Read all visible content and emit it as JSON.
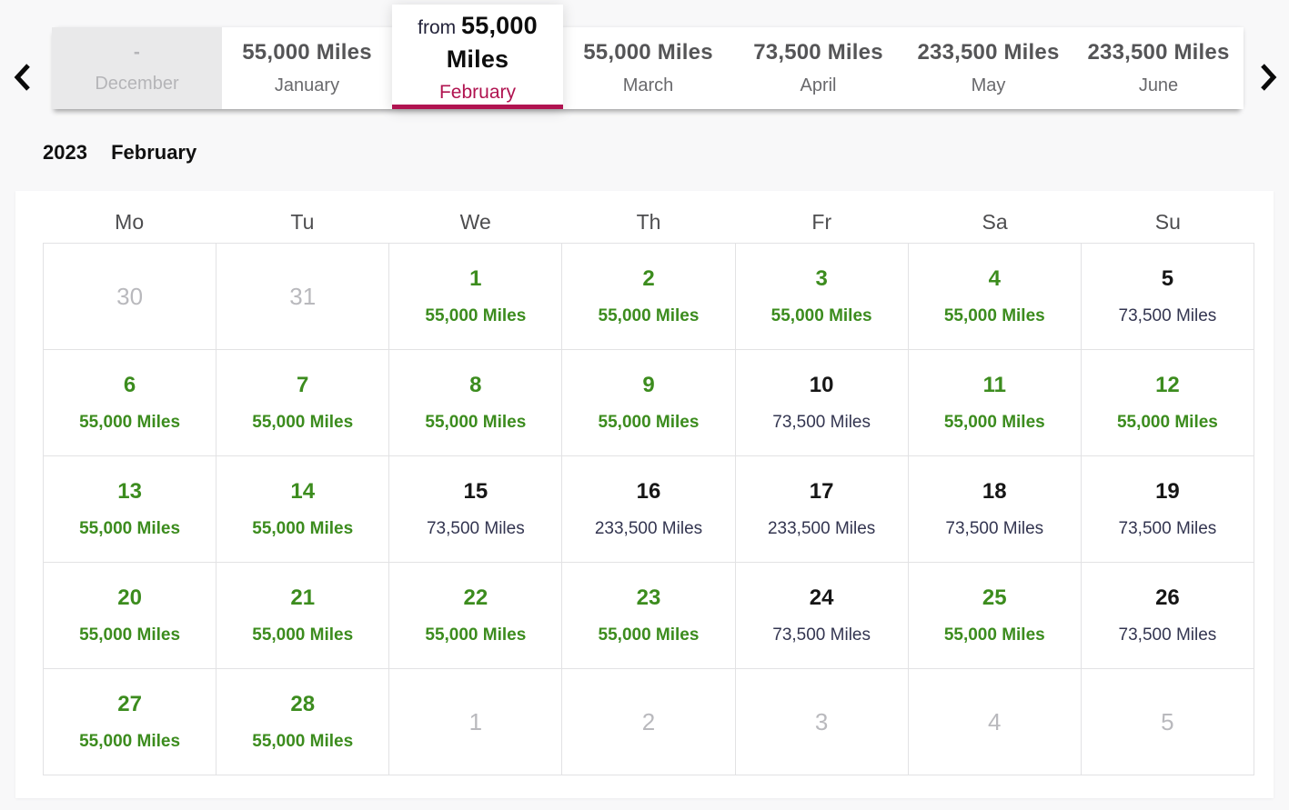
{
  "carousel": {
    "nav": {
      "prev_icon": "chevron-left",
      "next_icon": "chevron-right"
    },
    "tabs": [
      {
        "price": "-",
        "month": "December",
        "state": "disabled"
      },
      {
        "price": "55,000 Miles",
        "month": "January",
        "state": "normal"
      },
      {
        "price_prefix": "from",
        "price": "55,000 Miles",
        "month": "February",
        "state": "selected"
      },
      {
        "price": "55,000 Miles",
        "month": "March",
        "state": "normal"
      },
      {
        "price": "73,500 Miles",
        "month": "April",
        "state": "normal"
      },
      {
        "price": "233,500 Miles",
        "month": "May",
        "state": "normal"
      },
      {
        "price": "233,500 Miles",
        "month": "June",
        "state": "normal"
      }
    ]
  },
  "heading": {
    "year": "2023",
    "month": "February"
  },
  "calendar": {
    "weekdays": [
      "Mo",
      "Tu",
      "We",
      "Th",
      "Fr",
      "Sa",
      "Su"
    ],
    "weeks": [
      [
        {
          "day": "30",
          "type": "muted"
        },
        {
          "day": "31",
          "type": "muted"
        },
        {
          "day": "1",
          "miles": "55,000 Miles",
          "type": "award"
        },
        {
          "day": "2",
          "miles": "55,000 Miles",
          "type": "award"
        },
        {
          "day": "3",
          "miles": "55,000 Miles",
          "type": "award"
        },
        {
          "day": "4",
          "miles": "55,000 Miles",
          "type": "award"
        },
        {
          "day": "5",
          "miles": "73,500 Miles",
          "type": "standard"
        }
      ],
      [
        {
          "day": "6",
          "miles": "55,000 Miles",
          "type": "award"
        },
        {
          "day": "7",
          "miles": "55,000 Miles",
          "type": "award"
        },
        {
          "day": "8",
          "miles": "55,000 Miles",
          "type": "award"
        },
        {
          "day": "9",
          "miles": "55,000 Miles",
          "type": "award"
        },
        {
          "day": "10",
          "miles": "73,500 Miles",
          "type": "standard"
        },
        {
          "day": "11",
          "miles": "55,000 Miles",
          "type": "award"
        },
        {
          "day": "12",
          "miles": "55,000 Miles",
          "type": "award"
        }
      ],
      [
        {
          "day": "13",
          "miles": "55,000 Miles",
          "type": "award"
        },
        {
          "day": "14",
          "miles": "55,000 Miles",
          "type": "award"
        },
        {
          "day": "15",
          "miles": "73,500 Miles",
          "type": "standard"
        },
        {
          "day": "16",
          "miles": "233,500 Miles",
          "type": "standard"
        },
        {
          "day": "17",
          "miles": "233,500 Miles",
          "type": "standard"
        },
        {
          "day": "18",
          "miles": "73,500 Miles",
          "type": "standard"
        },
        {
          "day": "19",
          "miles": "73,500 Miles",
          "type": "standard"
        }
      ],
      [
        {
          "day": "20",
          "miles": "55,000 Miles",
          "type": "award"
        },
        {
          "day": "21",
          "miles": "55,000 Miles",
          "type": "award"
        },
        {
          "day": "22",
          "miles": "55,000 Miles",
          "type": "award"
        },
        {
          "day": "23",
          "miles": "55,000 Miles",
          "type": "award"
        },
        {
          "day": "24",
          "miles": "73,500 Miles",
          "type": "standard"
        },
        {
          "day": "25",
          "miles": "55,000 Miles",
          "type": "award"
        },
        {
          "day": "26",
          "miles": "73,500 Miles",
          "type": "standard"
        }
      ],
      [
        {
          "day": "27",
          "miles": "55,000 Miles",
          "type": "award"
        },
        {
          "day": "28",
          "miles": "55,000 Miles",
          "type": "award"
        },
        {
          "day": "1",
          "type": "muted"
        },
        {
          "day": "2",
          "type": "muted"
        },
        {
          "day": "3",
          "type": "muted"
        },
        {
          "day": "4",
          "type": "muted"
        },
        {
          "day": "5",
          "type": "muted"
        }
      ]
    ]
  },
  "colors": {
    "accent": "#b01350",
    "available": "#3c8c1e",
    "standard-text": "#333550",
    "muted-text": "#b9b9bd"
  }
}
